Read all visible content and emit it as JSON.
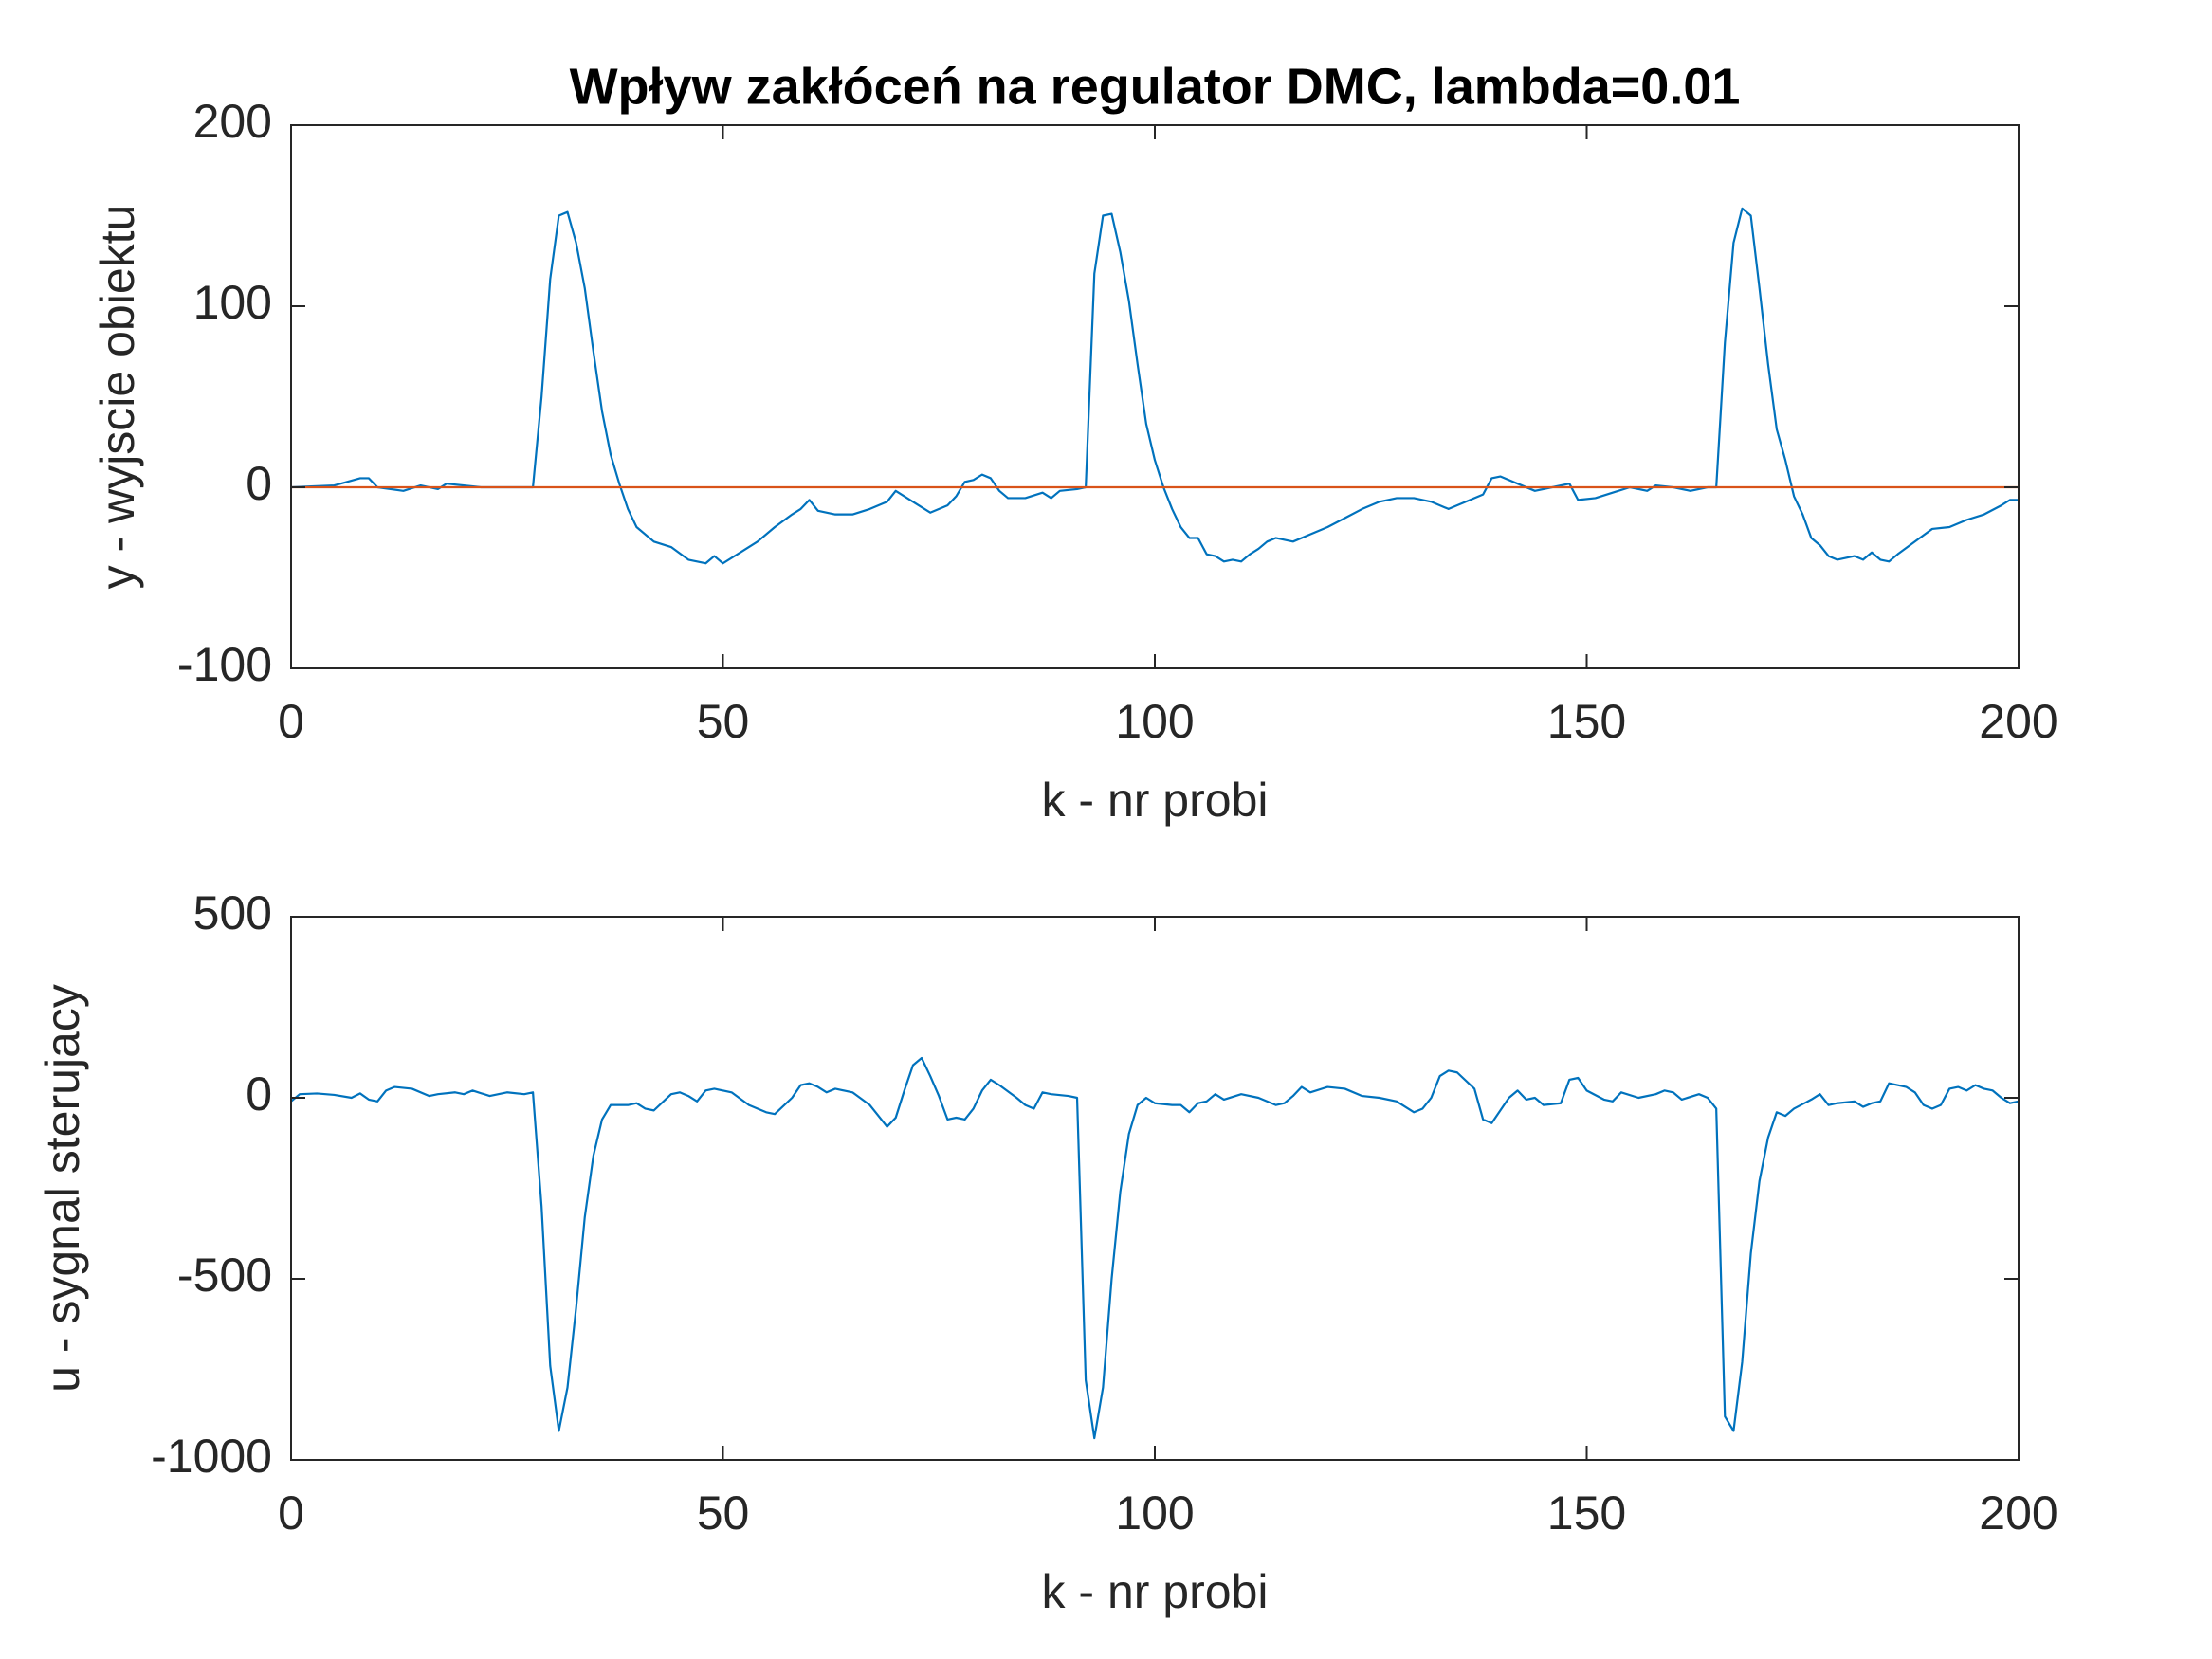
{
  "chart_data": [
    {
      "type": "line",
      "title": "Wpływ zakłóceń na regulator DMC, lambda=0.01",
      "xlabel": "k - nr probi",
      "ylabel": "y - wyjscie obiektu",
      "xlim": [
        0,
        200
      ],
      "xticks": [
        0,
        50,
        100,
        150,
        200
      ],
      "ylim": [
        -100,
        200
      ],
      "yticks": [
        -100,
        0,
        100,
        200
      ],
      "series": [
        {
          "color": "#0072BD",
          "x": [
            0,
            5,
            8,
            9,
            10,
            13,
            15,
            17,
            18,
            22,
            25,
            28,
            29,
            30,
            31,
            32,
            33,
            34,
            35,
            36,
            37,
            38,
            39,
            40,
            42,
            44,
            46,
            48,
            49,
            50,
            52,
            54,
            56,
            58,
            59,
            60,
            61,
            63,
            65,
            67,
            69,
            70,
            72,
            74,
            76,
            77,
            78,
            79,
            80,
            81,
            82,
            83,
            85,
            87,
            88,
            89,
            91,
            92,
            93,
            94,
            95,
            96,
            97,
            98,
            99,
            100,
            101,
            102,
            103,
            104,
            105,
            106,
            107,
            108,
            109,
            110,
            111,
            112,
            113,
            114,
            116,
            118,
            120,
            122,
            124,
            126,
            128,
            130,
            132,
            134,
            136,
            138,
            139,
            140,
            142,
            144,
            146,
            148,
            149,
            151,
            153,
            155,
            157,
            158,
            160,
            162,
            164,
            165,
            166,
            167,
            168,
            169,
            170,
            171,
            172,
            173,
            174,
            175,
            176,
            177,
            178,
            179,
            181,
            182,
            183,
            184,
            185,
            186,
            188,
            190,
            192,
            194,
            196,
            198,
            199,
            200
          ],
          "values": [
            0,
            1,
            5,
            5,
            0,
            -2,
            1,
            -1,
            2,
            0,
            0,
            0,
            50,
            115,
            150,
            152,
            135,
            110,
            75,
            42,
            18,
            2,
            -12,
            -22,
            -30,
            -33,
            -40,
            -42,
            -38,
            -42,
            -36,
            -30,
            -22,
            -15,
            -12,
            -7,
            -13,
            -15,
            -15,
            -12,
            -8,
            -2,
            -8,
            -14,
            -10,
            -5,
            3,
            4,
            7,
            5,
            -2,
            -6,
            -6,
            -3,
            -6,
            -2,
            -1,
            0,
            118,
            150,
            151,
            130,
            103,
            68,
            35,
            15,
            0,
            -12,
            -22,
            -28,
            -28,
            -37,
            -38,
            -41,
            -40,
            -41,
            -37,
            -34,
            -30,
            -28,
            -30,
            -26,
            -22,
            -17,
            -12,
            -8,
            -6,
            -6,
            -8,
            -12,
            -8,
            -4,
            5,
            6,
            2,
            -2,
            0,
            2,
            -7,
            -6,
            -3,
            0,
            -2,
            1,
            0,
            -2,
            0,
            0,
            80,
            135,
            154,
            150,
            110,
            68,
            32,
            15,
            -5,
            -15,
            -28,
            -32,
            -38,
            -40,
            -38,
            -40,
            -36,
            -40,
            -41,
            -37,
            -30,
            -23,
            -22,
            -18,
            -15,
            -10,
            -7,
            -7
          ]
        },
        {
          "color": "#D95319",
          "x": [
            0,
            200
          ],
          "values": [
            0,
            0
          ]
        }
      ]
    },
    {
      "type": "line",
      "xlabel": "k - nr probi",
      "ylabel": "u - sygnal sterujacy",
      "xlim": [
        0,
        200
      ],
      "xticks": [
        0,
        50,
        100,
        150,
        200
      ],
      "ylim": [
        -1000,
        500
      ],
      "yticks": [
        -1000,
        -500,
        0,
        500
      ],
      "series": [
        {
          "color": "#0072BD",
          "x": [
            0,
            1,
            3,
            5,
            7,
            8,
            9,
            10,
            11,
            12,
            14,
            16,
            17,
            19,
            20,
            21,
            23,
            25,
            27,
            28,
            29,
            30,
            31,
            32,
            33,
            34,
            35,
            36,
            37,
            39,
            40,
            41,
            42,
            44,
            45,
            46,
            47,
            48,
            49,
            51,
            53,
            55,
            56,
            58,
            59,
            60,
            61,
            62,
            63,
            65,
            67,
            68,
            69,
            70,
            71,
            72,
            73,
            74,
            75,
            76,
            77,
            78,
            79,
            80,
            81,
            82,
            84,
            85,
            86,
            87,
            88,
            90,
            91,
            92,
            93,
            94,
            95,
            96,
            97,
            98,
            99,
            100,
            102,
            103,
            104,
            105,
            106,
            107,
            108,
            110,
            112,
            114,
            115,
            116,
            117,
            118,
            120,
            122,
            124,
            126,
            128,
            130,
            131,
            132,
            133,
            134,
            135,
            137,
            138,
            139,
            141,
            142,
            143,
            144,
            145,
            147,
            148,
            149,
            150,
            152,
            153,
            154,
            156,
            158,
            159,
            160,
            161,
            163,
            164,
            165,
            166,
            167,
            168,
            169,
            170,
            171,
            172,
            173,
            174,
            176,
            177,
            178,
            179,
            181,
            182,
            183,
            184,
            185,
            187,
            188,
            189,
            190,
            191,
            192,
            193,
            194,
            195,
            196,
            197,
            198,
            199,
            200
          ],
          "values": [
            -10,
            10,
            12,
            8,
            0,
            12,
            -5,
            -10,
            20,
            30,
            25,
            5,
            10,
            15,
            10,
            20,
            5,
            15,
            10,
            15,
            -300,
            -740,
            -920,
            -800,
            -580,
            -330,
            -160,
            -60,
            -20,
            -20,
            -15,
            -30,
            -35,
            10,
            15,
            5,
            -10,
            20,
            25,
            15,
            -20,
            -40,
            -45,
            0,
            35,
            40,
            30,
            15,
            25,
            15,
            -20,
            -50,
            -80,
            -55,
            20,
            90,
            110,
            60,
            5,
            -60,
            -55,
            -60,
            -30,
            20,
            50,
            35,
            0,
            -20,
            -30,
            15,
            10,
            5,
            0,
            -780,
            -940,
            -800,
            -500,
            -260,
            -100,
            -20,
            0,
            -15,
            -20,
            -20,
            -40,
            -15,
            -10,
            10,
            -5,
            10,
            0,
            -20,
            -15,
            5,
            30,
            15,
            30,
            25,
            5,
            0,
            -10,
            -40,
            -30,
            0,
            60,
            75,
            70,
            25,
            -60,
            -70,
            0,
            20,
            -5,
            0,
            -20,
            -15,
            50,
            55,
            20,
            -5,
            -10,
            15,
            0,
            10,
            20,
            15,
            -5,
            10,
            0,
            -30,
            -880,
            -920,
            -730,
            -430,
            -230,
            -110,
            -40,
            -50,
            -30,
            -5,
            10,
            -20,
            -15,
            -10,
            -25,
            -15,
            -10,
            40,
            30,
            15,
            -20,
            -30,
            -20,
            25,
            30,
            20,
            35,
            25,
            20,
            0,
            -15,
            -10
          ]
        }
      ]
    }
  ]
}
